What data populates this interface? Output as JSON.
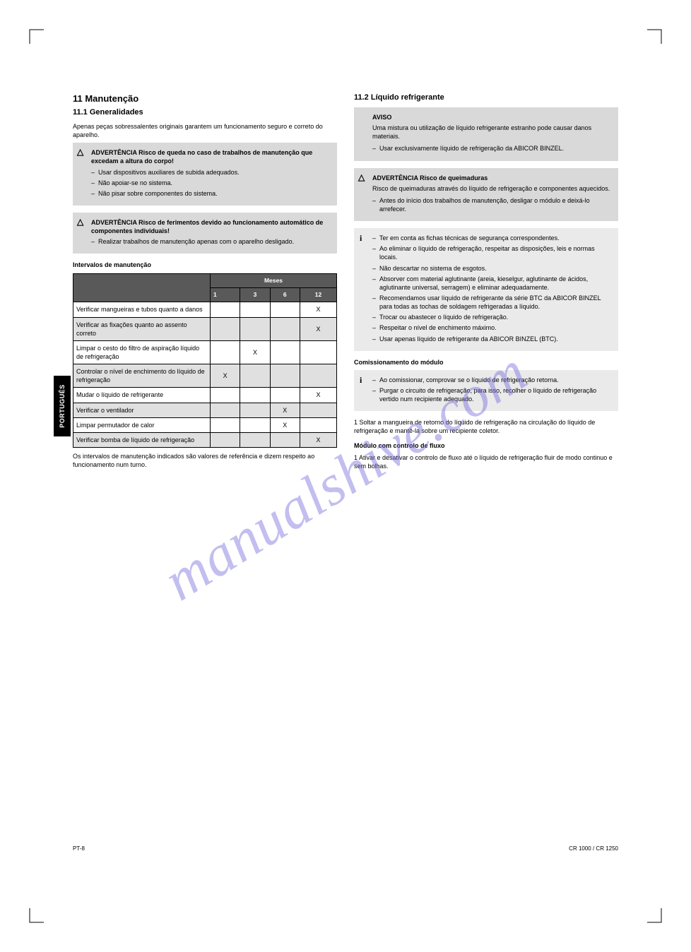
{
  "sideTab": "PORTUGUÊS",
  "watermark": "manualshive.com",
  "left": {
    "section1": {
      "heading": "11   Manutenção",
      "sub": "11.1   Generalidades",
      "intro": "Apenas peças sobressalentes originais garantem um funcionamento seguro e correto do aparelho.",
      "warn1": {
        "title": "ADVERTÊNCIA Risco de queda no caso de trabalhos de manutenção que excedam a altura do corpo!",
        "items": [
          "Usar dispositivos auxiliares de subida adequados.",
          "Não apoiar-se no sistema.",
          "Não pisar sobre componentes do sistema."
        ]
      },
      "warn2": {
        "title": "ADVERTÊNCIA Risco de ferimentos devido ao funcionamento automático de componentes individuais!",
        "items": [
          "Realizar trabalhos de manutenção apenas com o aparelho desligado."
        ]
      },
      "tableTitle": "Intervalos de manutenção",
      "table": {
        "headers": [
          "",
          "Meses"
        ],
        "subheaders": [
          "1",
          "3",
          "6",
          "12"
        ],
        "rows": [
          {
            "label": "Verificar mangueiras e tubos quanto a danos",
            "cells": [
              "",
              "",
              "",
              "X"
            ]
          },
          {
            "label": "Verificar as fixações quanto ao assento correto",
            "cells": [
              "",
              "",
              "",
              "X"
            ]
          },
          {
            "label": "Limpar o cesto do filtro de aspiração líquido de refrigeração",
            "cells": [
              "",
              "X",
              "",
              ""
            ]
          },
          {
            "label": "Controlar o nível de enchimento do líquido de refrigeração",
            "cells": [
              "X",
              "",
              "",
              ""
            ]
          },
          {
            "label": "Mudar o líquido de refrigerante",
            "cells": [
              "",
              "",
              "",
              "X"
            ]
          },
          {
            "label": "Verificar o ventilador",
            "cells": [
              "",
              "",
              "X",
              ""
            ]
          },
          {
            "label": "Limpar permutador de calor",
            "cells": [
              "",
              "",
              "X",
              ""
            ]
          },
          {
            "label": "Verificar bomba de líquido de refrigeração",
            "cells": [
              "",
              "",
              "",
              "X"
            ]
          }
        ]
      },
      "note": "Os intervalos de manutenção indicados são valores de referência e dizem respeito ao funcionamento num turno."
    }
  },
  "right": {
    "section2": {
      "sub": "11.2   Líquido refrigerante",
      "aviso": {
        "title": "AVISO",
        "body": "Uma mistura ou utilização de líquido refrigerante estranho pode causar danos materiais.",
        "items": [
          "Usar exclusivamente líquido de refrigeração da ABICOR BINZEL."
        ]
      },
      "warn": {
        "title": "ADVERTÊNCIA Risco de queimaduras",
        "body": "Risco de queimaduras através do líquido de refrigeração e componentes aquecidos.",
        "items": [
          "Antes do início dos trabalhos de manutenção, desligar o módulo e deixá-lo arrefecer."
        ]
      },
      "info1": {
        "items": [
          "Ter em conta as fichas técnicas de segurança correspondentes.",
          "Ao eliminar o líquido de refrigeração, respeitar as disposições, leis e normas locais.",
          "Não descartar no sistema de esgotos.",
          "Absorver com material aglutinante (areia, kieselgur, aglutinante de ácidos, aglutinante universal, serragem) e eliminar adequadamente.",
          "Recomendamos usar líquido de refrigerante da série BTC da ABICOR BINZEL para todas as tochas de soldagem refrigeradas a líquido.",
          "Trocar ou abastecer o líquido de refrigeração.",
          "Respeitar o nível de enchimento máximo.",
          "Usar apenas líquido de refrigerante da ABICOR BINZEL (BTC)."
        ]
      },
      "section3title": "Comissionamento do módulo",
      "info2": {
        "items": [
          "Ao comissionar, comprovar se o líquido de refrigeração retorna.",
          "Purgar o circuito de refrigeração, para isso, recolher o líquido de refrigeração vertido num recipiente adequado."
        ]
      },
      "step": "1   Soltar a mangueira de retorno do líquido de refrigeração na circulação do líquido de refrigeração e mantê-la sobre um recipiente coletor.",
      "section4title": "Módulo com controlo de fluxo",
      "step2": "1   Ativar e desativar o controlo de fluxo até o líquido de refrigeração fluir de modo continuo e sem bolhas."
    }
  },
  "refs": {
    "left": "PT-8",
    "right": "CR 1000 / CR 1250"
  }
}
